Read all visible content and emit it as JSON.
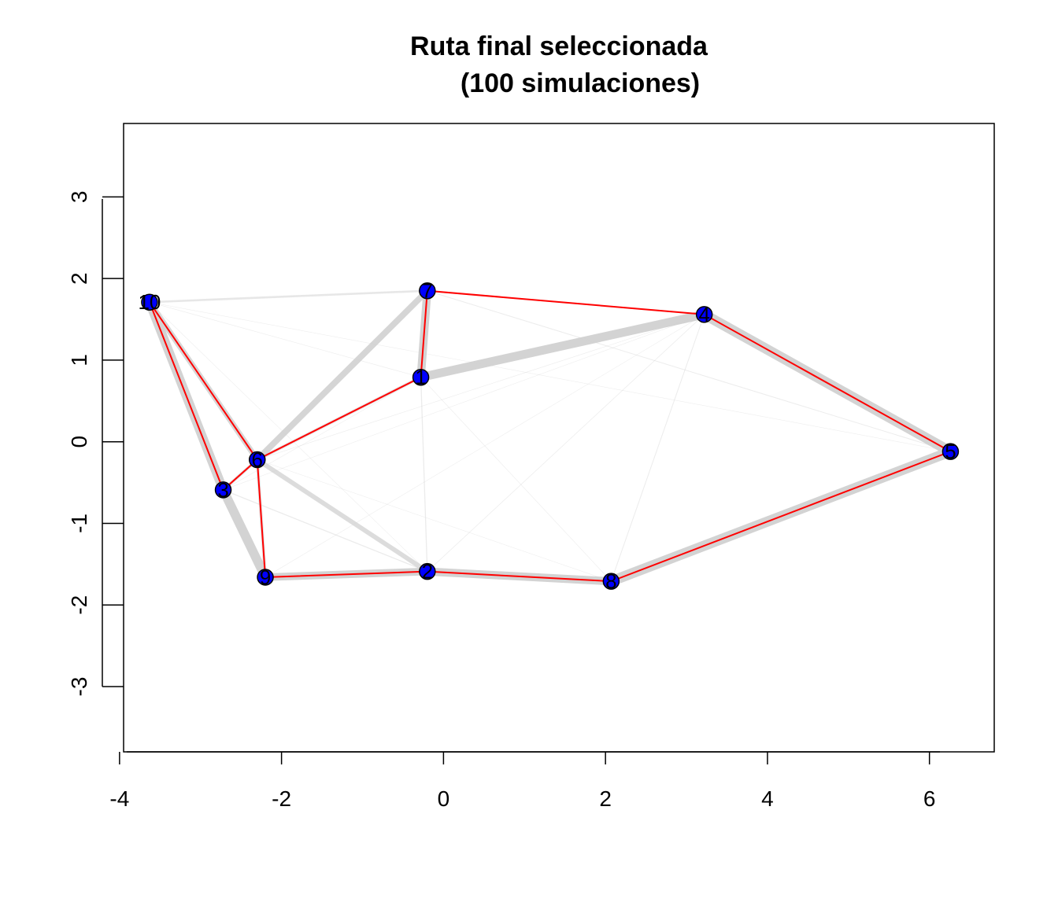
{
  "chart_data": {
    "type": "scatter",
    "title": "Ruta final seleccionada",
    "subtitle": "(100 simulaciones)",
    "xlabel": "",
    "ylabel": "",
    "xlim": [
      -3.95,
      6.8
    ],
    "ylim": [
      -3.8,
      3.9
    ],
    "xticks": [
      -4,
      -2,
      0,
      2,
      4,
      6
    ],
    "yticks": [
      -3,
      -2,
      -1,
      0,
      1,
      2,
      3
    ],
    "grid": false,
    "node_color": "#0000ff",
    "route_color": "#ff0000",
    "edge_color": "#d3d3d3",
    "nodes": [
      {
        "label": "1",
        "x": -0.28,
        "y": 0.79
      },
      {
        "label": "2",
        "x": -0.2,
        "y": -1.59
      },
      {
        "label": "3",
        "x": -2.72,
        "y": -0.59
      },
      {
        "label": "4",
        "x": 3.22,
        "y": 1.56
      },
      {
        "label": "5",
        "x": 6.26,
        "y": -0.12
      },
      {
        "label": "6",
        "x": -2.3,
        "y": -0.22
      },
      {
        "label": "7",
        "x": -0.2,
        "y": 1.85
      },
      {
        "label": "8",
        "x": 2.07,
        "y": -1.71
      },
      {
        "label": "9",
        "x": -2.2,
        "y": -1.66
      },
      {
        "label": "10",
        "x": -3.63,
        "y": 1.71
      }
    ],
    "route": [
      "10",
      "3",
      "6",
      "1",
      "7",
      "4",
      "5",
      "8",
      "2",
      "9",
      "6",
      "10"
    ],
    "edges": [
      {
        "from": "10",
        "to": "3",
        "weight": 0.9
      },
      {
        "from": "3",
        "to": "9",
        "weight": 0.9
      },
      {
        "from": "9",
        "to": "2",
        "weight": 0.75
      },
      {
        "from": "2",
        "to": "8",
        "weight": 0.8
      },
      {
        "from": "8",
        "to": "5",
        "weight": 1.0
      },
      {
        "from": "5",
        "to": "4",
        "weight": 1.0
      },
      {
        "from": "4",
        "to": "1",
        "weight": 0.85
      },
      {
        "from": "1",
        "to": "7",
        "weight": 0.8
      },
      {
        "from": "7",
        "to": "6",
        "weight": 0.6
      },
      {
        "from": "6",
        "to": "10",
        "weight": 0.55
      },
      {
        "from": "6",
        "to": "2",
        "weight": 0.45
      },
      {
        "from": "10",
        "to": "7",
        "weight": 0.2
      },
      {
        "from": "7",
        "to": "4",
        "weight": 0.15
      },
      {
        "from": "3",
        "to": "6",
        "weight": 0.3
      },
      {
        "from": "6",
        "to": "1",
        "weight": 0.3
      },
      {
        "from": "6",
        "to": "9",
        "weight": 0.3
      },
      {
        "from": "3",
        "to": "2",
        "weight": 0.1
      },
      {
        "from": "1",
        "to": "2",
        "weight": 0.1
      },
      {
        "from": "4",
        "to": "8",
        "weight": 0.08
      },
      {
        "from": "7",
        "to": "5",
        "weight": 0.08
      },
      {
        "from": "4",
        "to": "2",
        "weight": 0.06
      },
      {
        "from": "10",
        "to": "1",
        "weight": 0.05
      },
      {
        "from": "6",
        "to": "4",
        "weight": 0.05
      },
      {
        "from": "1",
        "to": "8",
        "weight": 0.05
      },
      {
        "from": "10",
        "to": "5",
        "weight": 0.04
      },
      {
        "from": "9",
        "to": "4",
        "weight": 0.04
      },
      {
        "from": "6",
        "to": "8",
        "weight": 0.04
      },
      {
        "from": "3",
        "to": "1",
        "weight": 0.03
      },
      {
        "from": "10",
        "to": "2",
        "weight": 0.03
      },
      {
        "from": "3",
        "to": "4",
        "weight": 0.03
      }
    ]
  }
}
